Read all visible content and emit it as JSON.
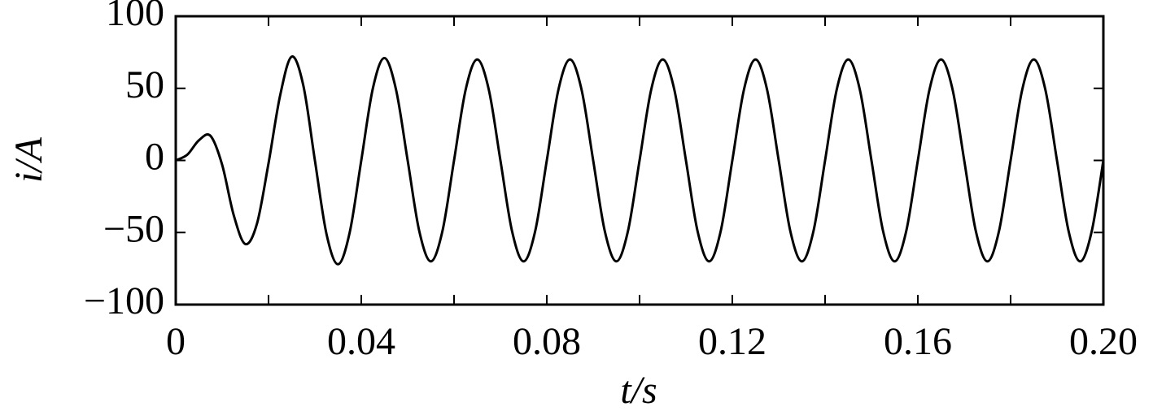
{
  "chart_data": {
    "type": "line",
    "xlabel": "t/s",
    "ylabel": "i/A",
    "x": [
      0,
      0.0025,
      0.005,
      0.0075,
      0.01,
      0.0125,
      0.015,
      0.0175,
      0.02,
      0.0225,
      0.025,
      0.0275,
      0.03,
      0.0325,
      0.035,
      0.0375,
      0.04,
      0.0425,
      0.045,
      0.0475,
      0.05,
      0.0525,
      0.055,
      0.0575,
      0.06,
      0.0625,
      0.065,
      0.0675,
      0.07,
      0.0725,
      0.075,
      0.0775,
      0.08,
      0.0825,
      0.085,
      0.0875,
      0.09,
      0.0925,
      0.095,
      0.0975,
      0.1,
      0.1025,
      0.105,
      0.1075,
      0.11,
      0.1125,
      0.115,
      0.1175,
      0.12,
      0.1225,
      0.125,
      0.1275,
      0.13,
      0.1325,
      0.135,
      0.1375,
      0.14,
      0.1425,
      0.145,
      0.1475,
      0.15,
      0.1525,
      0.155,
      0.1575,
      0.16,
      0.1625,
      0.165,
      0.1675,
      0.17,
      0.1725,
      0.175,
      0.1775,
      0.18,
      0.1825,
      0.185,
      0.1875,
      0.19,
      0.1925,
      0.195,
      0.1975,
      0.2
    ],
    "series": [
      {
        "color": "#000000",
        "values": [
          0,
          4,
          14,
          17,
          -3,
          -38,
          -58,
          -44,
          -2,
          45,
          72,
          52,
          0,
          -51,
          -72,
          -50,
          0,
          50,
          71,
          49,
          0,
          -49,
          -70,
          -49,
          0,
          49,
          70,
          49,
          0,
          -49,
          -70,
          -49,
          0,
          49,
          70,
          49,
          0,
          -49,
          -70,
          -49,
          0,
          49,
          70,
          49,
          0,
          -49,
          -70,
          -49,
          0,
          49,
          70,
          49,
          0,
          -49,
          -70,
          -49,
          0,
          49,
          70,
          49,
          0,
          -49,
          -70,
          -49,
          0,
          49,
          70,
          49,
          0,
          -49,
          -70,
          -49,
          0,
          49,
          70,
          49,
          0,
          -49,
          -70,
          -49,
          0
        ]
      }
    ],
    "xlim": [
      0,
      0.2
    ],
    "ylim": [
      -100,
      100
    ],
    "xticks": [
      0,
      0.04,
      0.08,
      0.12,
      0.16,
      {
        "value": 0.2,
        "label": "0.20"
      }
    ],
    "yticks": [
      {
        "value": -100,
        "label": "−100"
      },
      {
        "value": -50,
        "label": "−50"
      },
      0,
      50,
      100
    ],
    "grid": false
  }
}
